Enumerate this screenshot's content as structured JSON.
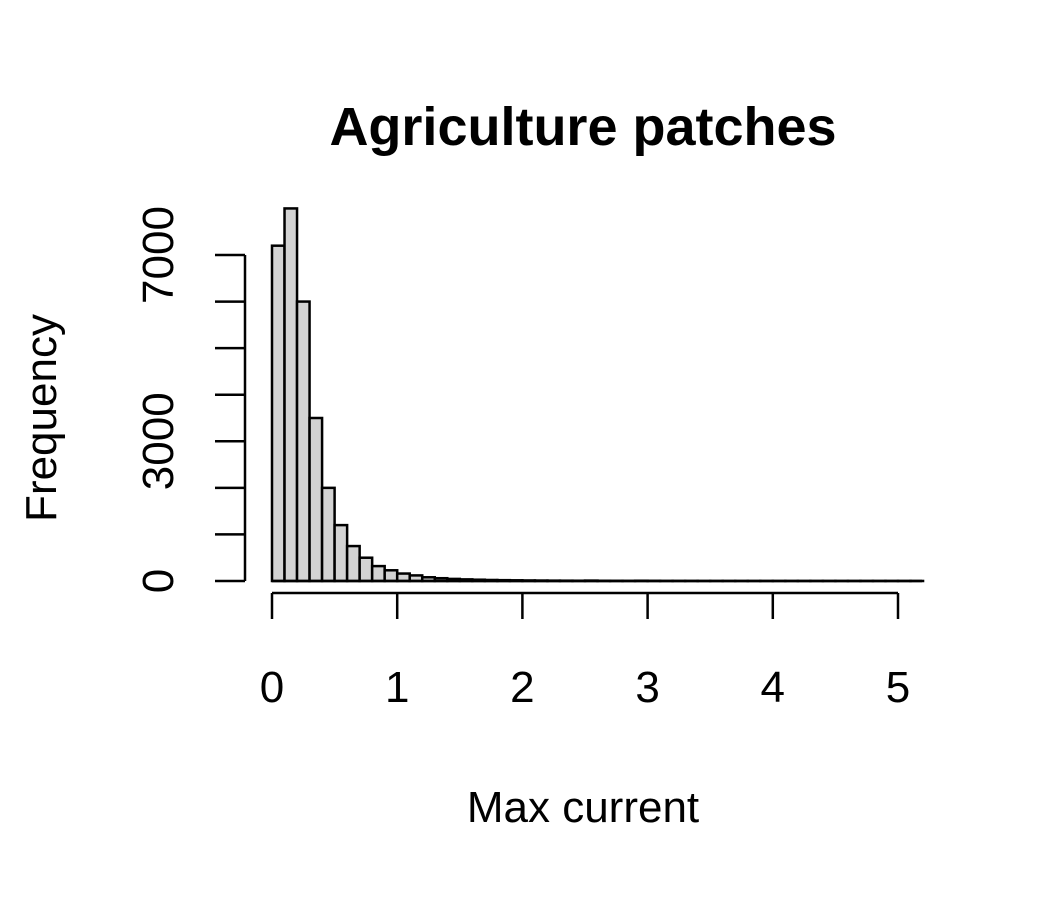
{
  "chart_data": {
    "type": "bar",
    "title": "Agriculture patches",
    "xlabel": "Max current",
    "ylabel": "Frequency",
    "bin_width": 0.1,
    "bin_start": 0,
    "values": [
      7200,
      8000,
      6000,
      3500,
      2000,
      1200,
      750,
      500,
      320,
      230,
      160,
      120,
      80,
      60,
      45,
      35,
      28,
      22,
      18,
      15,
      12,
      10,
      8,
      7,
      6,
      9,
      5,
      4,
      3,
      6,
      4,
      2,
      2,
      2,
      1,
      1,
      1,
      1,
      1,
      1,
      1,
      1,
      1,
      1,
      1,
      1,
      1,
      1,
      1,
      1,
      1,
      1
    ],
    "xlim": [
      0,
      5.2
    ],
    "ylim": [
      0,
      8000
    ],
    "x_ticks": [
      0,
      1,
      2,
      3,
      4,
      5
    ],
    "x_tick_labels": [
      "0",
      "1",
      "2",
      "3",
      "4",
      "5"
    ],
    "y_ticks": [
      0,
      1000,
      2000,
      3000,
      4000,
      5000,
      6000,
      7000,
      8000
    ],
    "y_tick_labels": [
      "0",
      "",
      "",
      "3000",
      "",
      "",
      "",
      "7000",
      ""
    ],
    "grid": false,
    "legend": "none"
  }
}
